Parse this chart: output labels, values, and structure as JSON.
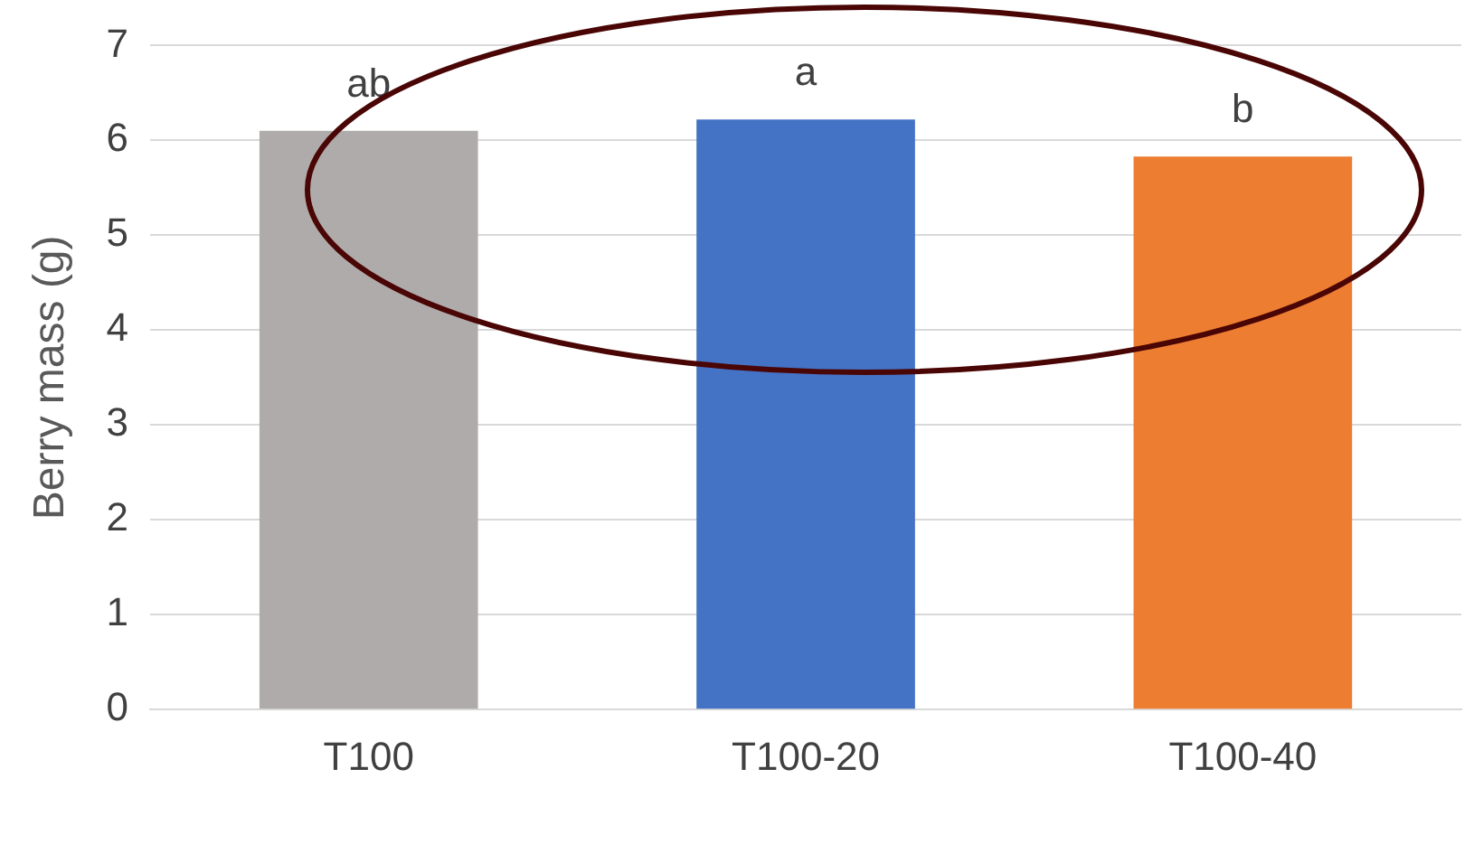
{
  "chart_data": {
    "type": "bar",
    "ylabel": "Berry mass (g)",
    "categories": [
      "T100",
      "T100-20",
      "T100-40"
    ],
    "values": [
      6.1,
      6.22,
      5.83
    ],
    "colors": [
      "#afabab",
      "#4472c4",
      "#ed7d31"
    ],
    "ylim": [
      0,
      7
    ],
    "yticks": [
      0,
      1,
      2,
      3,
      4,
      5,
      6,
      7
    ],
    "grid": "y",
    "legend": false,
    "annotations": [
      {
        "text": "ab",
        "x": "T100",
        "y": 6.1
      },
      {
        "text": "a",
        "x": "T100-20",
        "y": 6.22
      },
      {
        "text": "b",
        "x": "T100-40",
        "y": 5.83
      }
    ]
  }
}
